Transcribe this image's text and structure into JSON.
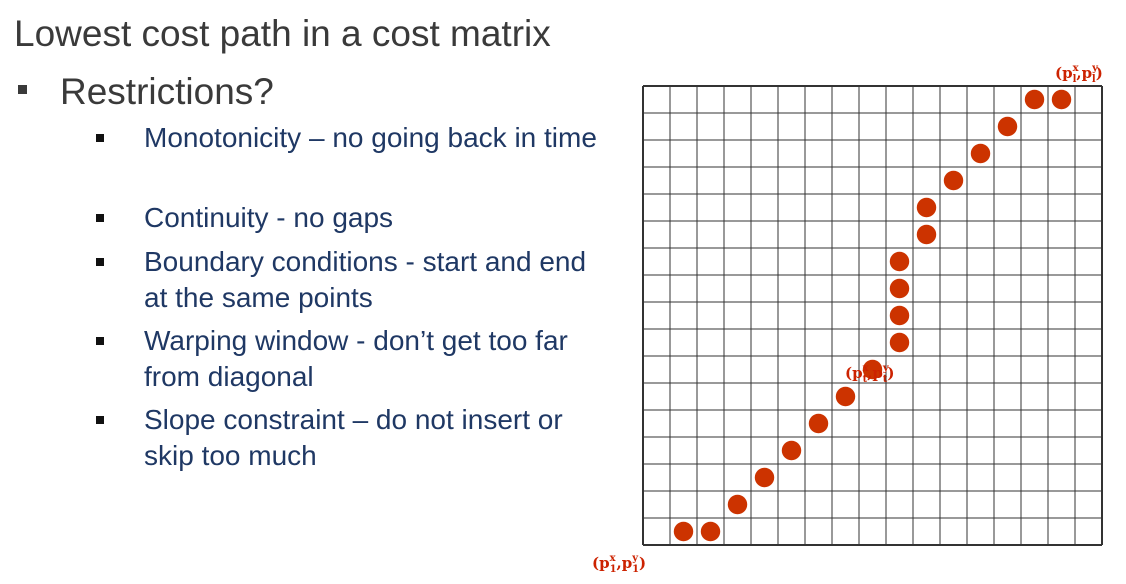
{
  "slide": {
    "title": "Lowest cost path in a cost matrix",
    "main_bullet": "Restrictions?",
    "sub_bullets": [
      "Monotonicity – no going back in time",
      "Continuity  - no gaps",
      "Boundary conditions - start and end at the same points",
      "Warping window - don’t get too far from diagonal",
      "Slope constraint – do not insert or skip too much"
    ]
  },
  "matrix": {
    "columns": 17,
    "rows": 17,
    "path_color": "#cc3300",
    "line_color": "#333333",
    "path": [
      [
        1,
        0
      ],
      [
        2,
        0
      ],
      [
        3,
        1
      ],
      [
        4,
        2
      ],
      [
        5,
        3
      ],
      [
        6,
        4
      ],
      [
        7,
        5
      ],
      [
        8,
        6
      ],
      [
        9,
        7
      ],
      [
        9,
        8
      ],
      [
        9,
        9
      ],
      [
        9,
        10
      ],
      [
        10,
        11
      ],
      [
        10,
        12
      ],
      [
        11,
        13
      ],
      [
        12,
        14
      ],
      [
        13,
        15
      ],
      [
        14,
        16
      ],
      [
        15,
        16
      ]
    ],
    "labels": {
      "start": {
        "base": "(p",
        "sup1": "x",
        "sub1": "1",
        "mid": ",p",
        "sup2": "y",
        "sub2": "1",
        "end": ")"
      },
      "middle": {
        "base": "(p",
        "sup1": "x",
        "sub1": "t",
        "mid": ",p",
        "sup2": "y",
        "sub2": "t",
        "end": ")"
      },
      "end": {
        "base": "(p",
        "sup1": "x",
        "sub1": "l",
        "mid": ",p",
        "sup2": "y",
        "sub2": "l",
        "end": ")"
      }
    }
  }
}
